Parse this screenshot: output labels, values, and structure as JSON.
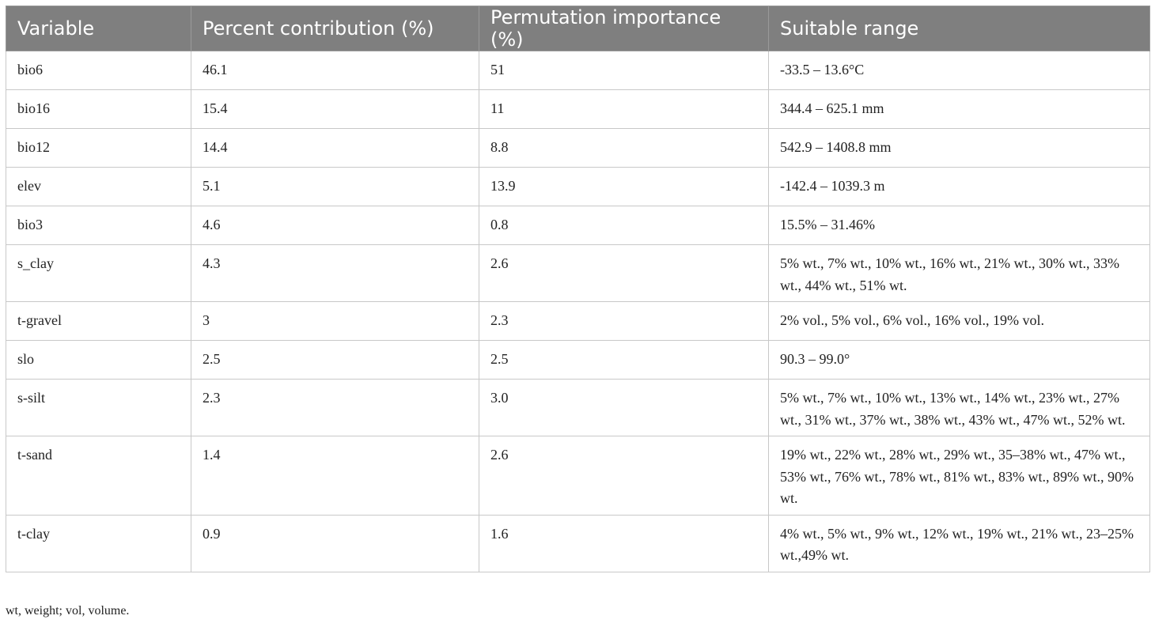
{
  "table": {
    "headers": [
      "Variable",
      "Percent contribution (%)",
      "Permutation importance (%)",
      "Suitable range"
    ],
    "rows": [
      [
        "bio6",
        "46.1",
        "51",
        "-33.5 – 13.6°C"
      ],
      [
        "bio16",
        "15.4",
        "11",
        "344.4 – 625.1 mm"
      ],
      [
        "bio12",
        "14.4",
        "8.8",
        "542.9 – 1408.8 mm"
      ],
      [
        "elev",
        "5.1",
        "13.9",
        "-142.4 – 1039.3 m"
      ],
      [
        "bio3",
        "4.6",
        "0.8",
        "15.5% – 31.46%"
      ],
      [
        "s_clay",
        "4.3",
        "2.6",
        "5% wt., 7% wt., 10% wt., 16% wt., 21% wt., 30% wt., 33% wt., 44% wt., 51% wt."
      ],
      [
        "t-gravel",
        "3",
        "2.3",
        "2% vol., 5% vol., 6% vol., 16% vol., 19% vol."
      ],
      [
        "slo",
        "2.5",
        "2.5",
        "90.3 – 99.0°"
      ],
      [
        "s-silt",
        "2.3",
        "3.0",
        "5% wt., 7% wt., 10% wt., 13% wt., 14% wt., 23% wt., 27% wt., 31% wt., 37% wt., 38% wt., 43% wt., 47% wt., 52% wt."
      ],
      [
        "t-sand",
        "1.4",
        "2.6",
        "19% wt., 22% wt., 28% wt., 29% wt., 35–38% wt., 47% wt., 53% wt., 76% wt., 78% wt., 81% wt., 83% wt., 89% wt., 90% wt."
      ],
      [
        "t-clay",
        "0.9",
        "1.6",
        "4% wt., 5% wt., 9% wt., 12% wt., 19% wt., 21% wt., 23–25% wt.,49% wt."
      ]
    ]
  },
  "footnote": "wt, weight; vol, volume."
}
